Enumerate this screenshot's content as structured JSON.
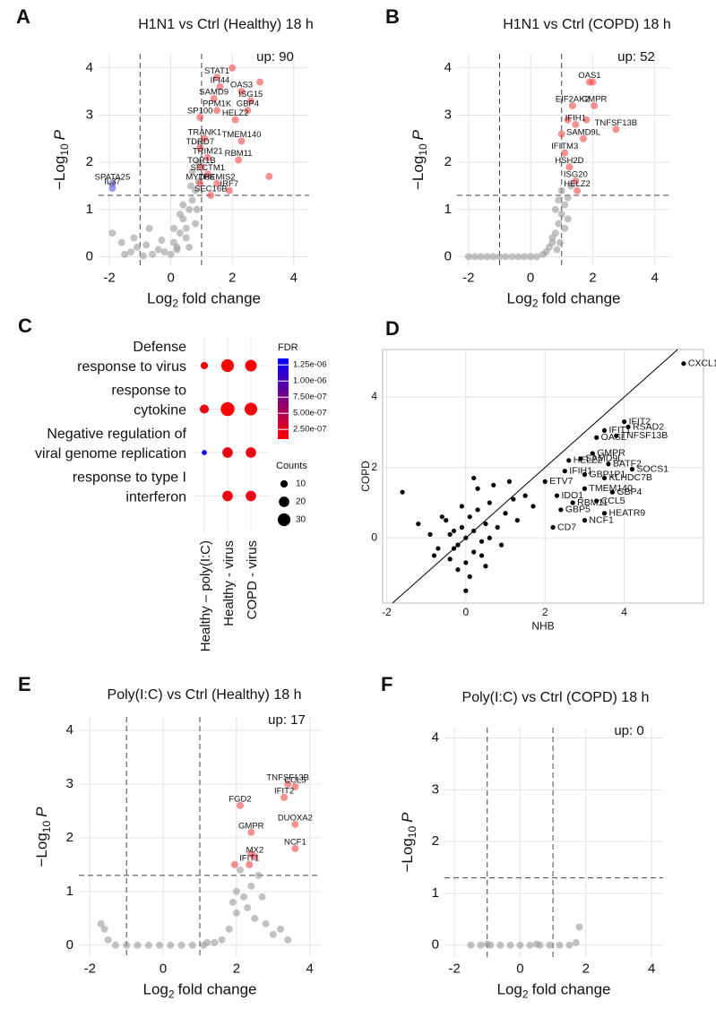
{
  "chart_data": [
    {
      "type": "scatter",
      "panel": "A",
      "title": "H1N1 vs Ctrl (Healthy) 18 h",
      "annotation": "up: 90",
      "xlabel": [
        "Log",
        "2",
        "fold change"
      ],
      "ylabel": [
        "−Log",
        "10",
        "P"
      ],
      "xlim": [
        -2.35,
        4.5
      ],
      "ylim": [
        -0.2,
        4.3
      ],
      "xticks": [
        -2,
        0,
        2,
        4
      ],
      "yticks": [
        0,
        1,
        2,
        3,
        4
      ],
      "grid": true,
      "thresholds_x": [
        -1,
        1
      ],
      "threshold_y": 1.3,
      "series": [
        {
          "color": "#9a9a9a",
          "x": [
            -1.9,
            -1.6,
            -1.3,
            -1.1,
            -0.8,
            -0.6,
            -0.4,
            -0.2,
            0,
            0.1,
            0.2,
            0.3,
            0.4,
            0.5,
            0.6,
            0.7,
            0.8,
            0.9,
            0.5,
            0.3,
            0.7,
            0.9,
            0.6,
            0.8,
            0.4,
            -0.3,
            -0.7,
            -1.5,
            -1.2,
            0.2,
            0.95,
            0.85,
            0.65,
            -0.9,
            0.1
          ],
          "y": [
            0.5,
            0.3,
            0.1,
            0.2,
            0.25,
            0.05,
            0.15,
            0.1,
            0.05,
            0.3,
            0.2,
            0.5,
            0.8,
            0.6,
            1.0,
            1.2,
            1.4,
            1.6,
            0.4,
            0.9,
            1.8,
            2.0,
            0.2,
            0.7,
            1.1,
            0.35,
            0.6,
            0.05,
            0.4,
            0.15,
            2.4,
            1.0,
            1.5,
            0.02,
            0.6
          ]
        },
        {
          "color": "#5b5bd6",
          "x": [
            -1.9,
            -1.9
          ],
          "y": [
            1.55,
            1.45
          ],
          "point_labels": [
            "SPATA25",
            "IL37"
          ]
        },
        {
          "color": "#f0484b",
          "x": [
            1.5,
            1.6,
            2.3,
            1.4,
            2.6,
            2.5,
            1.5,
            2.1,
            0.95,
            1.1,
            0.95,
            2.3,
            1.2,
            2.2,
            1.0,
            1.2,
            0.95,
            1.5,
            1.3,
            1.9,
            2.0,
            3.2,
            2.9
          ],
          "y": [
            3.8,
            3.6,
            3.5,
            3.35,
            3.3,
            3.1,
            3.1,
            2.9,
            2.95,
            2.5,
            2.3,
            2.45,
            2.1,
            2.05,
            1.9,
            1.75,
            1.55,
            1.55,
            1.3,
            1.4,
            4.0,
            1.7,
            3.7
          ],
          "point_labels": [
            "STAT1",
            "IFI44",
            "OAS3",
            "SAMD9",
            "ISG15",
            "GBP4",
            "PPM1K",
            "HELZ2",
            "SP100",
            "TRANK1",
            "TDRD7",
            "TMEM140",
            "TRIM21",
            "RBM11",
            "TOR1B",
            "SECTM1",
            "MYD88",
            "THEMIS2",
            "SEC16B",
            "IRF7",
            null,
            null,
            null
          ]
        }
      ]
    },
    {
      "type": "scatter",
      "panel": "B",
      "title": "H1N1 vs Ctrl (COPD) 18 h",
      "annotation": "up: 52",
      "xlabel": [
        "Log",
        "2",
        "fold change"
      ],
      "ylabel": [
        "−Log",
        "10",
        "P"
      ],
      "xlim": [
        -2.37,
        4.5
      ],
      "ylim": [
        -0.2,
        4.3
      ],
      "xticks": [
        -2,
        0,
        2,
        4
      ],
      "yticks": [
        0,
        1,
        2,
        3,
        4
      ],
      "grid": true,
      "thresholds_x": [
        -1,
        1
      ],
      "threshold_y": 1.3,
      "series": [
        {
          "color": "#9a9a9a",
          "x": [
            -2,
            -1.8,
            -1.6,
            -1.4,
            -1.2,
            -1.0,
            -0.8,
            -0.6,
            -0.4,
            -0.2,
            0,
            0.2,
            0.4,
            0.5,
            0.6,
            0.7,
            0.8,
            0.9,
            1.0,
            0.8,
            0.9,
            1.1,
            1.2,
            0.7,
            1.0,
            1.3,
            1.1,
            0.95,
            0.85,
            1.2
          ],
          "y": [
            0,
            0,
            0,
            0,
            0,
            0,
            0,
            0,
            0,
            0,
            0,
            0,
            0.05,
            0.1,
            0.2,
            0.3,
            0.5,
            0.7,
            0.9,
            1.0,
            1.2,
            1.1,
            0.8,
            0.4,
            1.4,
            1.5,
            0.6,
            0.3,
            0.15,
            1.25
          ]
        },
        {
          "color": "#f0484b",
          "x": [
            1.9,
            1.35,
            2.05,
            1.45,
            2.75,
            1.7,
            1.1,
            1.25,
            1.45,
            1.5,
            1.0,
            1.2,
            1.8,
            2.0
          ],
          "y": [
            3.7,
            3.2,
            3.2,
            2.8,
            2.7,
            2.5,
            2.2,
            1.9,
            1.6,
            1.4,
            2.6,
            2.9,
            2.9,
            3.7
          ],
          "point_labels": [
            "OAS1",
            "EIF2AK2",
            "GMPR",
            "IFIH1",
            "TNFSF13B",
            "SAMD9L",
            "IFITM3",
            "HSH2D",
            "ISG20",
            "HELZ2",
            null,
            null,
            null,
            null
          ]
        }
      ]
    },
    {
      "type": "dot",
      "panel": "C",
      "terms": [
        [
          "Defense",
          "response to virus"
        ],
        [
          "response to",
          "cytokine"
        ],
        [
          "Negative regulation of",
          "viral genome replication"
        ],
        [
          "response to type I",
          "interferon"
        ]
      ],
      "groups": [
        "Healthy – poly(I:C)",
        "Healthy - virus",
        "COPD - virus"
      ],
      "counts": [
        [
          10,
          30,
          25
        ],
        [
          15,
          35,
          30
        ],
        [
          5,
          20,
          20
        ],
        [
          null,
          20,
          20
        ]
      ],
      "fdr": [
        [
          2e-07,
          1e-07,
          1.5e-07
        ],
        [
          2e-07,
          1e-07,
          1.5e-07
        ],
        [
          1.25e-06,
          2e-07,
          2e-07
        ],
        [
          null,
          2e-07,
          2e-07
        ]
      ],
      "fdr_title": "FDR",
      "fdrlim": [
        1e-07,
        1.35e-06
      ],
      "fdr_ticks": [
        {
          "value": 1.25e-06,
          "label": "1.25e-06"
        },
        {
          "value": 1e-06,
          "label": "1.00e-06"
        },
        {
          "value": 7.5e-07,
          "label": "7.50e-07"
        },
        {
          "value": 5e-07,
          "label": "5.00e-07"
        },
        {
          "value": 2.5e-07,
          "label": "2.50e-07"
        }
      ],
      "color_low": "#ff0000",
      "color_high": "#0000ff",
      "counts_title": "Counts",
      "counts_ticks": [
        10,
        20,
        30
      ]
    },
    {
      "type": "scatter",
      "panel": "D",
      "xlabel": "NHB",
      "ylabel": "COPD",
      "xlim": [
        -2.1,
        6.0
      ],
      "ylim": [
        -1.85,
        5.35
      ],
      "xticks": [
        -2,
        0,
        2,
        4
      ],
      "yticks": [
        0,
        2,
        4
      ],
      "grid": true,
      "border": true,
      "identity_line": true,
      "series": [
        {
          "color": "#000000",
          "x": [
            -1.6,
            -1.2,
            -0.9,
            -0.7,
            -0.5,
            -0.4,
            -0.3,
            -0.2,
            -0.1,
            0,
            0.1,
            0.2,
            0.3,
            0.4,
            0.5,
            0.6,
            0.8,
            1.0,
            1.2,
            1.5,
            0.0,
            0.2,
            -0.2,
            0.4,
            -0.4,
            0.1,
            -0.1,
            0.3,
            0.6,
            0.9,
            1.3,
            1.7,
            -0.8,
            0.7,
            -0.6,
            0.5,
            0.2,
            0.0,
            -0.3,
            1.1
          ],
          "y": [
            1.3,
            0.4,
            0.1,
            -0.3,
            0.5,
            -0.6,
            0.2,
            -0.9,
            0.3,
            -1.5,
            0.6,
            -0.4,
            0.8,
            -0.1,
            0.4,
            1.0,
            0.3,
            0.7,
            1.1,
            1.2,
            0.0,
            0.2,
            -0.2,
            -0.5,
            0.1,
            -1.1,
            0.9,
            1.4,
            0.0,
            -0.2,
            0.5,
            0.9,
            -0.5,
            1.5,
            0.6,
            -0.8,
            1.7,
            -0.7,
            -0.3,
            1.6
          ]
        },
        {
          "color": "#000000",
          "label_color": "#e8202a",
          "x": [
            5.5,
            4.0,
            4.1,
            3.5,
            3.3,
            3.8,
            2.6,
            2.9,
            3.2,
            3.6,
            4.2,
            2.5,
            3.0,
            3.5,
            2.0,
            3.0,
            3.7,
            2.3,
            3.3,
            2.7,
            3.5,
            2.4,
            3.0,
            2.2
          ],
          "y": [
            4.95,
            3.3,
            3.15,
            3.05,
            2.85,
            2.9,
            2.2,
            2.25,
            2.4,
            2.1,
            1.95,
            1.9,
            1.8,
            1.7,
            1.6,
            1.4,
            1.3,
            1.2,
            1.05,
            1.0,
            0.7,
            0.8,
            0.5,
            0.3
          ],
          "point_labels": [
            "CXCL10",
            "IFIT2",
            "RSAD2",
            "IFIT1",
            "OASL",
            "TNFSF13B",
            "HELZ2",
            "SAMD9L",
            "GMPR",
            "BATF2",
            "SOCS1",
            "IFIH1",
            "GBP1P1",
            "KLHDC7B",
            "ETV7",
            "TMEM140",
            "GBP4",
            "IDO1",
            "CCL5",
            "RBM11",
            "HEATR9",
            "GBP5",
            "NCF1",
            "CD7"
          ]
        }
      ]
    },
    {
      "type": "scatter",
      "panel": "E",
      "title": "Poly(I:C) vs Ctrl (Healthy) 18 h",
      "annotation": "up: 17",
      "xlabel": [
        "Log",
        "2",
        "fold change"
      ],
      "ylabel": [
        "−Log",
        "10",
        "P"
      ],
      "xlim": [
        -2.3,
        4.3
      ],
      "ylim": [
        -0.22,
        4.25
      ],
      "xticks": [
        -2,
        0,
        2,
        4
      ],
      "yticks": [
        0,
        1,
        2,
        3,
        4
      ],
      "grid": true,
      "thresholds_x": [
        -1,
        1
      ],
      "threshold_y": 1.3,
      "series": [
        {
          "color": "#9a9a9a",
          "x": [
            -1.7,
            -1.5,
            -1.3,
            -1.0,
            -0.7,
            -0.4,
            -0.1,
            0.2,
            0.5,
            0.8,
            1.1,
            1.4,
            1.6,
            1.8,
            2.0,
            2.2,
            2.4,
            2.6,
            2.0,
            2.3,
            2.5,
            2.8,
            3.0,
            3.2,
            1.9,
            2.1,
            3.4,
            2.7,
            -1.6,
            1.2
          ],
          "y": [
            0.4,
            0.1,
            0,
            0,
            0,
            0,
            0,
            0,
            0,
            0,
            0,
            0.05,
            0.1,
            0.3,
            0.6,
            0.9,
            1.1,
            1.3,
            1.0,
            0.7,
            0.5,
            0.4,
            0.2,
            0.3,
            0.8,
            1.4,
            0.1,
            0.9,
            0.3,
            0.05
          ]
        },
        {
          "color": "#f0484b",
          "x": [
            3.4,
            2.1,
            3.3,
            3.6,
            3.6,
            2.4,
            3.6,
            2.5,
            2.35,
            1.95,
            2.4
          ],
          "y": [
            3.0,
            2.6,
            2.75,
            2.95,
            2.25,
            2.1,
            1.8,
            1.65,
            1.5,
            1.5,
            1.7
          ],
          "point_labels": [
            "TNFSF13B",
            "FGD2",
            "IFIT2",
            "CCL5",
            "DUOXA2",
            "GMPR",
            "NCF1",
            "MX2",
            "IFIT1",
            null,
            null
          ]
        }
      ]
    },
    {
      "type": "scatter",
      "panel": "F",
      "title": "Poly(I:C) vs Ctrl (COPD) 18 h",
      "annotation": "up: 0",
      "xlabel": [
        "Log",
        "2",
        "fold change"
      ],
      "ylabel": [
        "−Log",
        "10",
        "P"
      ],
      "xlim": [
        -2.3,
        4.35
      ],
      "ylim": [
        -0.23,
        4.2
      ],
      "xticks": [
        -2,
        0,
        2,
        4
      ],
      "yticks": [
        0,
        1,
        2,
        3,
        4
      ],
      "grid": true,
      "thresholds_x": [
        -1,
        1
      ],
      "threshold_y": 1.3,
      "series": [
        {
          "color": "#9a9a9a",
          "x": [
            -1.5,
            -1.2,
            -0.9,
            -0.6,
            -0.3,
            0,
            0.3,
            0.6,
            0.9,
            1.2,
            1.5,
            1.7,
            1.8,
            -1.0,
            0.5
          ],
          "y": [
            0,
            0,
            0,
            0,
            0,
            0,
            0,
            0,
            0,
            0,
            0,
            0.05,
            0.35,
            0.02,
            0.02
          ]
        }
      ]
    }
  ]
}
